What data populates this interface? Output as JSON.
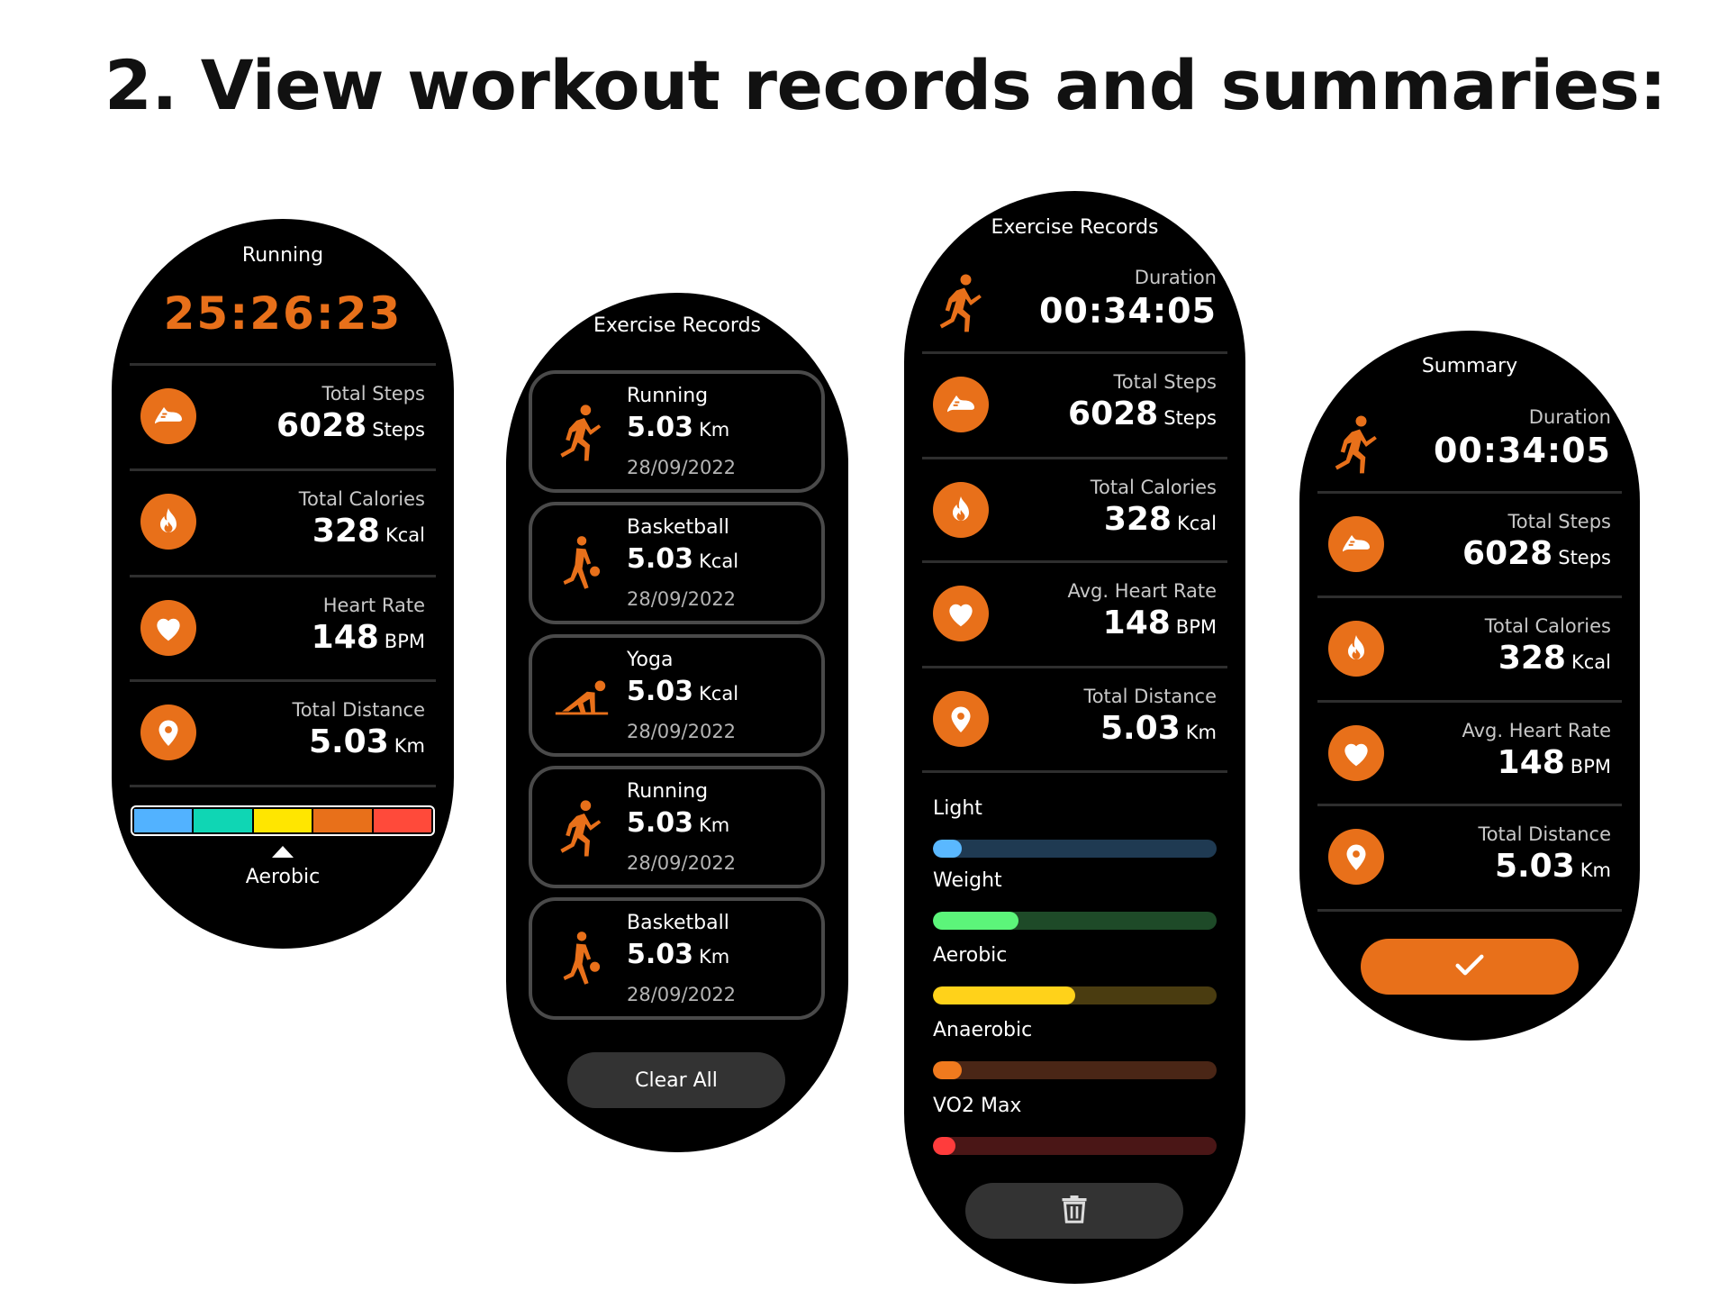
{
  "page": {
    "title": "2. View workout records and summaries:"
  },
  "colors": {
    "accent": "#E8701A",
    "card_border": "#4a4a4a",
    "button_dark": "#333333"
  },
  "icons": {
    "steps": "shoe-icon",
    "calories": "flame-icon",
    "heart": "heart-icon",
    "distance": "location-pin-icon",
    "running": "running-person-icon",
    "basketball": "basketball-player-icon",
    "yoga": "yoga-pose-icon",
    "delete": "trash-icon",
    "confirm": "check-icon"
  },
  "workout": {
    "title": "Running",
    "timer": "25:26:23",
    "metrics": [
      {
        "label": "Total Steps",
        "value": "6028",
        "unit": "Steps",
        "icon": "steps"
      },
      {
        "label": "Total Calories",
        "value": "328",
        "unit": "Kcal",
        "icon": "calories"
      },
      {
        "label": "Heart Rate",
        "value": "148",
        "unit": "BPM",
        "icon": "heart"
      },
      {
        "label": "Total Distance",
        "value": "5.03",
        "unit": "Km",
        "icon": "distance"
      }
    ],
    "zone_colors": [
      "#52B2FF",
      "#0FD6B4",
      "#FFE600",
      "#E8701A",
      "#FF4A3A"
    ],
    "current_zone": "Aerobic",
    "current_zone_index": 2
  },
  "records": {
    "title": "Exercise Records",
    "items": [
      {
        "name": "Running",
        "value": "5.03",
        "unit": "Km",
        "date": "28/09/2022",
        "icon": "running"
      },
      {
        "name": "Basketball",
        "value": "5.03",
        "unit": "Kcal",
        "date": "28/09/2022",
        "icon": "basketball"
      },
      {
        "name": "Yoga",
        "value": "5.03",
        "unit": "Kcal",
        "date": "28/09/2022",
        "icon": "yoga"
      },
      {
        "name": "Running",
        "value": "5.03",
        "unit": "Km",
        "date": "28/09/2022",
        "icon": "running"
      },
      {
        "name": "Basketball",
        "value": "5.03",
        "unit": "Km",
        "date": "28/09/2022",
        "icon": "basketball"
      }
    ],
    "clear_label": "Clear All"
  },
  "detail": {
    "title": "Exercise Records",
    "duration_label": "Duration",
    "duration": "00:34:05",
    "metrics": [
      {
        "label": "Total Steps",
        "value": "6028",
        "unit": "Steps",
        "icon": "steps"
      },
      {
        "label": "Total Calories",
        "value": "328",
        "unit": "Kcal",
        "icon": "calories"
      },
      {
        "label": "Avg. Heart Rate",
        "value": "148",
        "unit": "BPM",
        "icon": "heart"
      },
      {
        "label": "Total Distance",
        "value": "5.03",
        "unit": "Km",
        "icon": "distance"
      }
    ],
    "zones": [
      {
        "label": "Light",
        "fraction": 0.1,
        "fill": "#5AB8FF",
        "track": "#1F3A52"
      },
      {
        "label": "Weight",
        "fraction": 0.3,
        "fill": "#5CF57A",
        "track": "#1E4A28"
      },
      {
        "label": "Aerobic",
        "fraction": 0.5,
        "fill": "#FFD21A",
        "track": "#4A3C10"
      },
      {
        "label": "Anaerobic",
        "fraction": 0.1,
        "fill": "#F07A1E",
        "track": "#4A2616"
      },
      {
        "label": "VO2 Max",
        "fraction": 0.05,
        "fill": "#FF3C3C",
        "track": "#4A1616"
      }
    ]
  },
  "summary": {
    "title": "Summary",
    "duration_label": "Duration",
    "duration": "00:34:05",
    "metrics": [
      {
        "label": "Total Steps",
        "value": "6028",
        "unit": "Steps",
        "icon": "steps"
      },
      {
        "label": "Total Calories",
        "value": "328",
        "unit": "Kcal",
        "icon": "calories"
      },
      {
        "label": "Avg. Heart Rate",
        "value": "148",
        "unit": "BPM",
        "icon": "heart"
      },
      {
        "label": "Total Distance",
        "value": "5.03",
        "unit": "Km",
        "icon": "distance"
      }
    ]
  }
}
